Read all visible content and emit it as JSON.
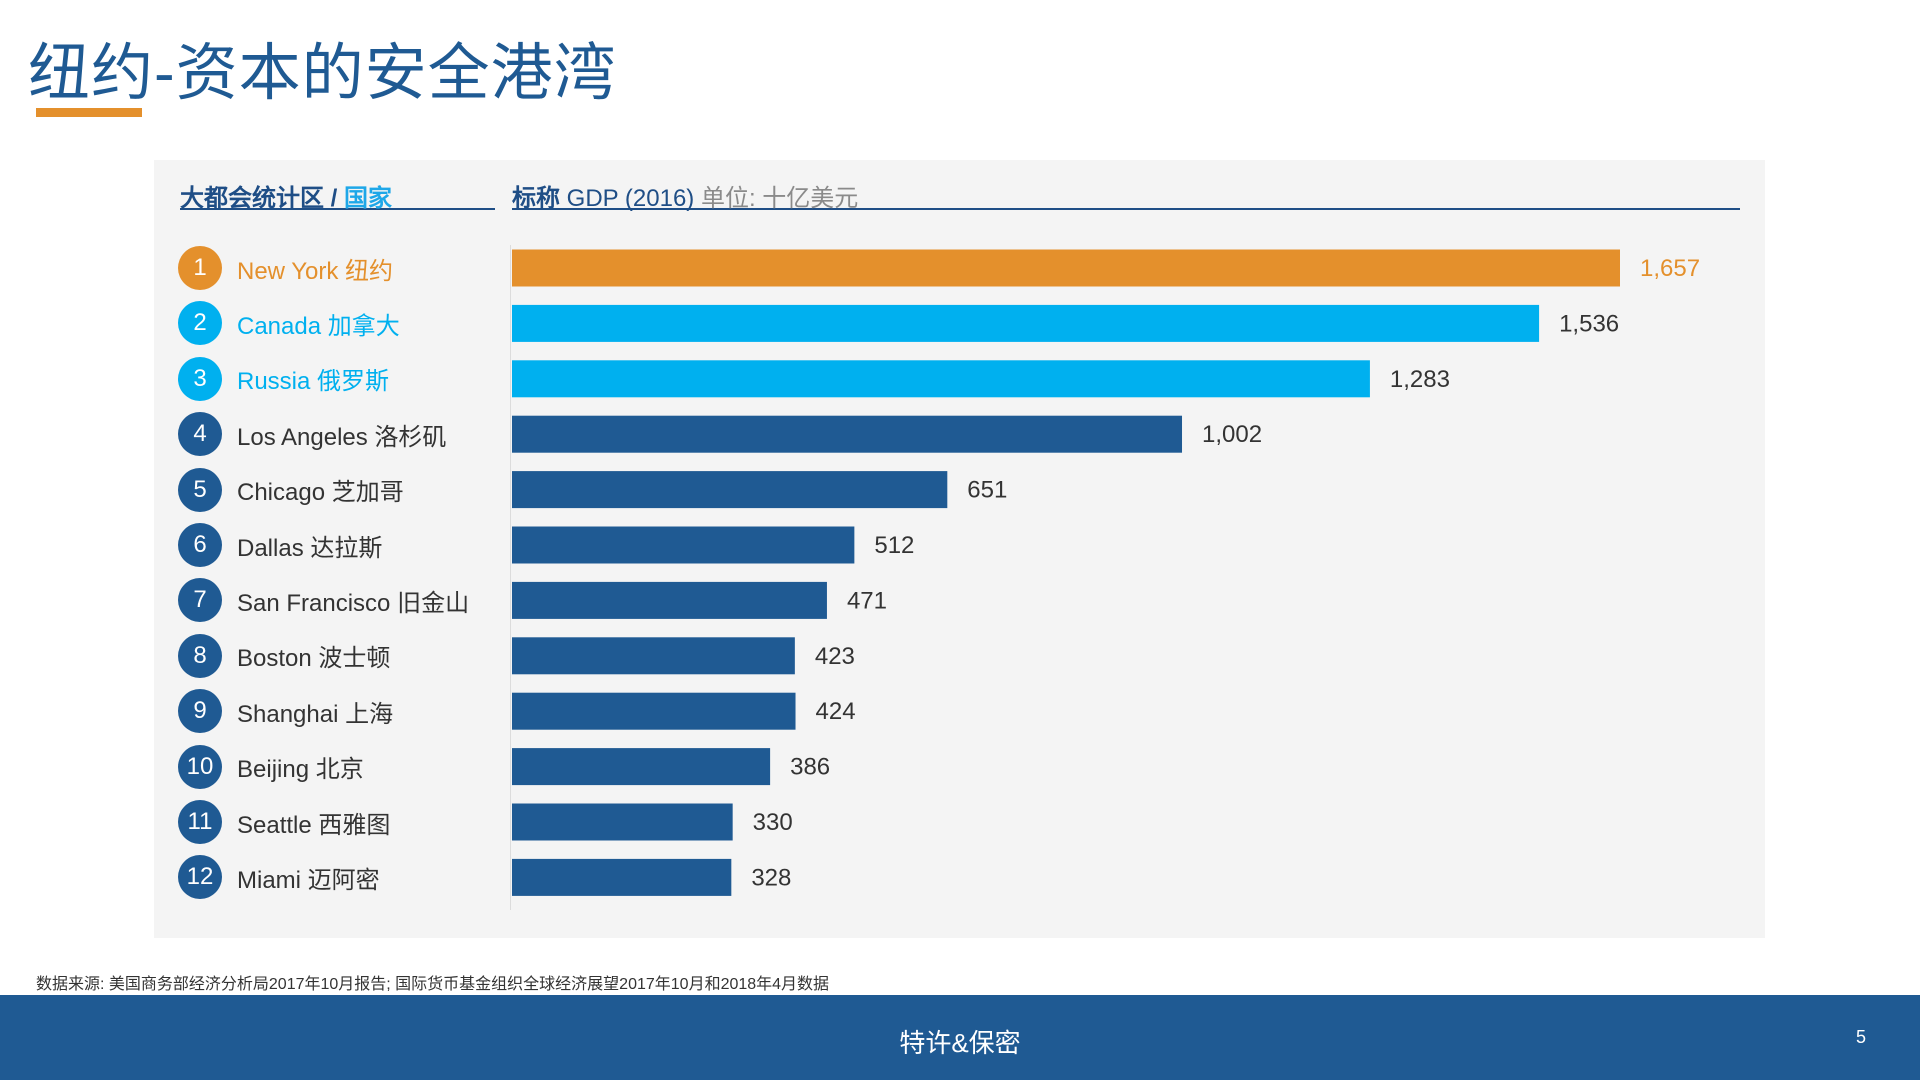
{
  "title": "纽约-资本的安全港湾",
  "header": {
    "left_main": "大都会统计区 / ",
    "left_accent": "国家",
    "right_bold": "标称",
    "right_main": " GDP (2016) ",
    "right_unit": "单位: 十亿美元"
  },
  "colors": {
    "highlight": "#e4902c",
    "country": "#00b0ef",
    "metro": "#1f5a93"
  },
  "chart_data": {
    "type": "bar",
    "orientation": "horizontal",
    "title": "",
    "xlabel": "",
    "ylabel": "",
    "xlim": [
      0,
      1657
    ],
    "rows": [
      {
        "rank": "1",
        "label": "New York 纽约",
        "value": 1657,
        "value_label": "1,657",
        "category": "highlight"
      },
      {
        "rank": "2",
        "label": "Canada 加拿大",
        "value": 1536,
        "value_label": "1,536",
        "category": "country"
      },
      {
        "rank": "3",
        "label": "Russia 俄罗斯",
        "value": 1283,
        "value_label": "1,283",
        "category": "country"
      },
      {
        "rank": "4",
        "label": "Los Angeles 洛杉矶",
        "value": 1002,
        "value_label": "1,002",
        "category": "metro"
      },
      {
        "rank": "5",
        "label": "Chicago 芝加哥",
        "value": 651,
        "value_label": "651",
        "category": "metro"
      },
      {
        "rank": "6",
        "label": "Dallas 达拉斯",
        "value": 512,
        "value_label": "512",
        "category": "metro"
      },
      {
        "rank": "7",
        "label": "San Francisco 旧金山",
        "value": 471,
        "value_label": "471",
        "category": "metro"
      },
      {
        "rank": "8",
        "label": "Boston 波士顿",
        "value": 423,
        "value_label": "423",
        "category": "metro"
      },
      {
        "rank": "9",
        "label": "Shanghai 上海",
        "value": 424,
        "value_label": "424",
        "category": "metro"
      },
      {
        "rank": "10",
        "label": "Beijing 北京",
        "value": 386,
        "value_label": "386",
        "category": "metro"
      },
      {
        "rank": "11",
        "label": "Seattle 西雅图",
        "value": 330,
        "value_label": "330",
        "category": "metro"
      },
      {
        "rank": "12",
        "label": "Miami 迈阿密",
        "value": 328,
        "value_label": "328",
        "category": "metro"
      }
    ]
  },
  "source_note": "数据来源: 美国商务部经济分析局2017年10月报告; 国际货币基金组织全球经济展望2017年10月和2018年4月数据",
  "footer": {
    "text": "特许&保密",
    "page_number": "5"
  }
}
